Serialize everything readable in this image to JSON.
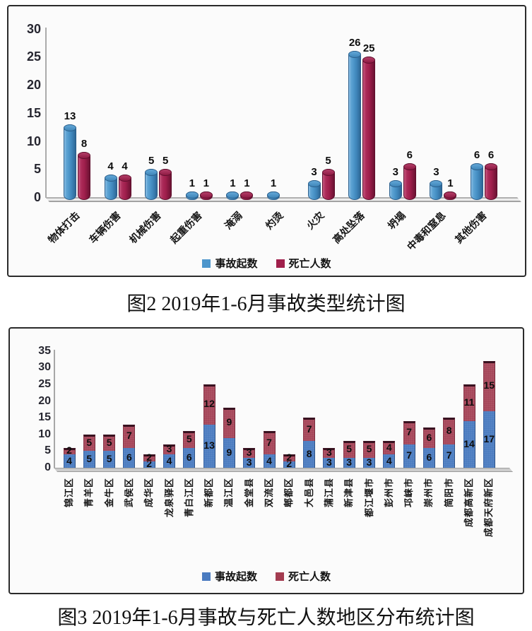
{
  "captions": {
    "fig2": "图2 2019年1-6月事故类型统计图",
    "fig3": "图3 2019年1-6月事故与死亡人数地区分布统计图"
  },
  "chart_data": [
    {
      "type": "bar",
      "style": "3d-cylinder-grouped",
      "title": "",
      "categories": [
        "物体打击",
        "车辆伤害",
        "机械伤害",
        "起重伤害",
        "淹溺",
        "灼烫",
        "火灾",
        "高处坠落",
        "坍塌",
        "中毒和窒息",
        "其他伤害"
      ],
      "series": [
        {
          "name": "事故起数",
          "color": "#4d96cc",
          "values": [
            13,
            4,
            5,
            1,
            1,
            1,
            3,
            26,
            3,
            3,
            6
          ]
        },
        {
          "name": "死亡人数",
          "color": "#a01f4b",
          "values": [
            8,
            4,
            5,
            1,
            1,
            0,
            5,
            25,
            6,
            1,
            6
          ]
        }
      ],
      "xlabel": "",
      "ylabel": "",
      "ylim": [
        0,
        30
      ],
      "ytick_step": 5,
      "grid": false,
      "legend_position": "bottom",
      "value_labels": "above-bars",
      "x_label_rotation_deg": -45
    },
    {
      "type": "bar",
      "style": "stacked",
      "title": "",
      "categories": [
        "锦江区",
        "青羊区",
        "金牛区",
        "武侯区",
        "成华区",
        "龙泉驿区",
        "青白江区",
        "新都区",
        "温江区",
        "金堂县",
        "双流区",
        "郫都区",
        "大邑县",
        "蒲江县",
        "新津县",
        "都江堰市",
        "彭州市",
        "邛崃市",
        "崇州市",
        "简阳市",
        "成都高新区",
        "成都天府新区"
      ],
      "series": [
        {
          "name": "事故起数",
          "color": "#4a7bc0",
          "values": [
            4,
            5,
            5,
            6,
            2,
            4,
            6,
            13,
            9,
            3,
            4,
            2,
            8,
            3,
            3,
            3,
            4,
            7,
            6,
            7,
            14,
            17
          ]
        },
        {
          "name": "死亡人数",
          "color": "#a54458",
          "values": [
            2,
            5,
            5,
            7,
            2,
            3,
            5,
            12,
            9,
            3,
            7,
            2,
            7,
            3,
            5,
            5,
            4,
            7,
            6,
            8,
            11,
            15
          ]
        }
      ],
      "xlabel": "",
      "ylabel": "",
      "ylim": [
        0,
        35
      ],
      "ytick_step": 5,
      "grid": false,
      "legend_position": "bottom",
      "value_labels": "inside-segments",
      "x_label_rotation_deg": -90
    }
  ]
}
